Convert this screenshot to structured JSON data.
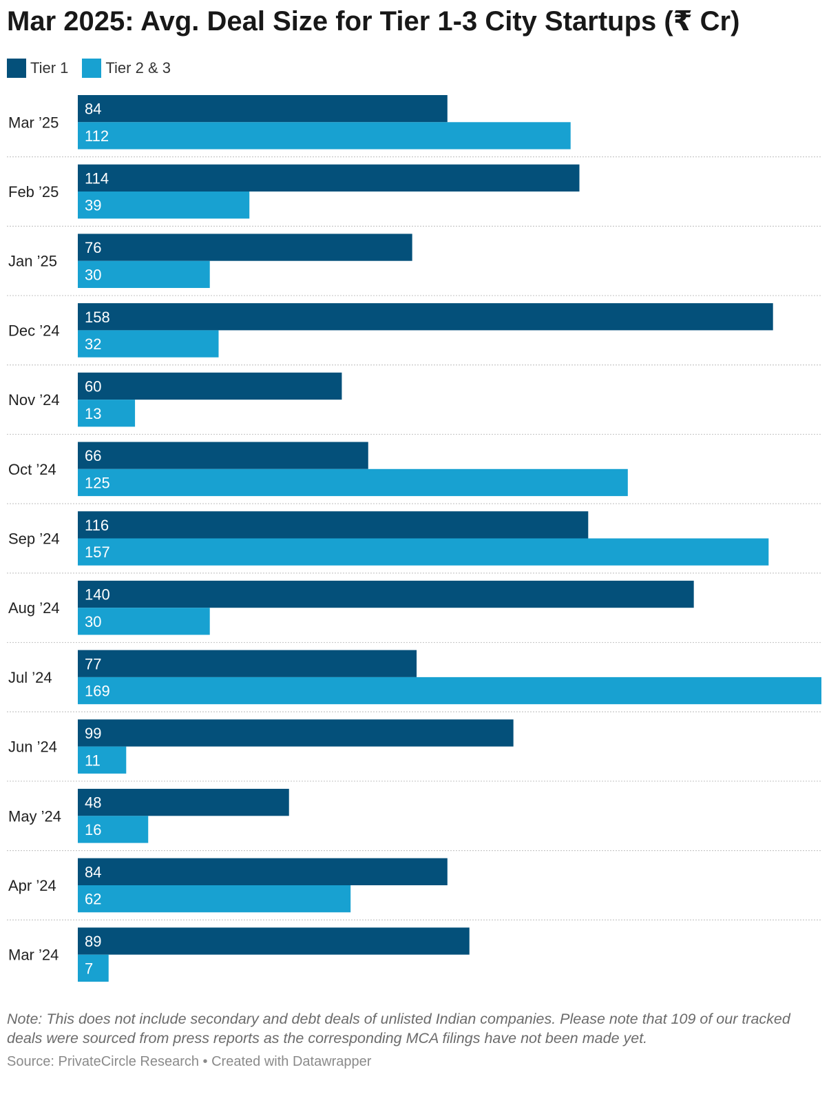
{
  "title": "Mar 2025: Avg. Deal Size for Tier 1-3 City Startups (₹ Cr)",
  "note": "Note: This does not include secondary and debt deals of unlisted Indian companies. Please note that 109 of our tracked deals were sourced from press reports as the corresponding MCA filings have not been made yet.",
  "source": "Source: PrivateCircle Research • Created with Datawrapper",
  "colors": {
    "tier1": "#04507a",
    "tier23": "#18a1d1",
    "separator": "#c8c8c8"
  },
  "chart_data": {
    "type": "bar",
    "orientation": "horizontal",
    "categories": [
      "Mar ’25",
      "Feb ’25",
      "Jan ’25",
      "Dec ’24",
      "Nov ’24",
      "Oct ’24",
      "Sep ’24",
      "Aug ’24",
      "Jul ’24",
      "Jun ’24",
      "May ’24",
      "Apr ’24",
      "Mar ’24"
    ],
    "series": [
      {
        "name": "Tier 1",
        "values": [
          84,
          114,
          76,
          158,
          60,
          66,
          116,
          140,
          77,
          99,
          48,
          84,
          89
        ]
      },
      {
        "name": "Tier 2 & 3",
        "values": [
          112,
          39,
          30,
          32,
          13,
          125,
          157,
          30,
          169,
          11,
          16,
          62,
          7
        ]
      }
    ],
    "xlim": [
      0,
      169
    ],
    "legend_position": "top-left",
    "grid": false
  }
}
